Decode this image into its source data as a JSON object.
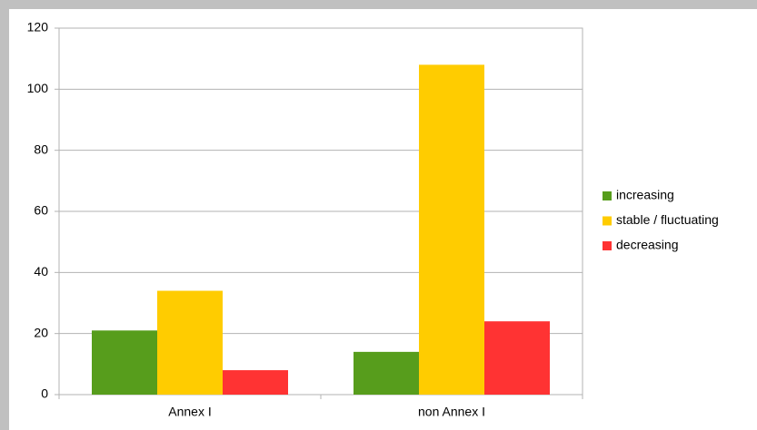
{
  "chart_data": {
    "type": "bar",
    "categories": [
      "Annex I",
      "non Annex I"
    ],
    "series": [
      {
        "name": "increasing",
        "color": "#579d1c",
        "values": [
          21,
          14
        ]
      },
      {
        "name": "stable / fluctuating",
        "color": "#ffcc00",
        "values": [
          34,
          108
        ]
      },
      {
        "name": "decreasing",
        "color": "#ff3333",
        "values": [
          8,
          24
        ]
      }
    ],
    "ylim": [
      0,
      120
    ],
    "yticks": [
      0,
      20,
      40,
      60,
      80,
      100,
      120
    ],
    "grid": true,
    "legend": "right"
  }
}
